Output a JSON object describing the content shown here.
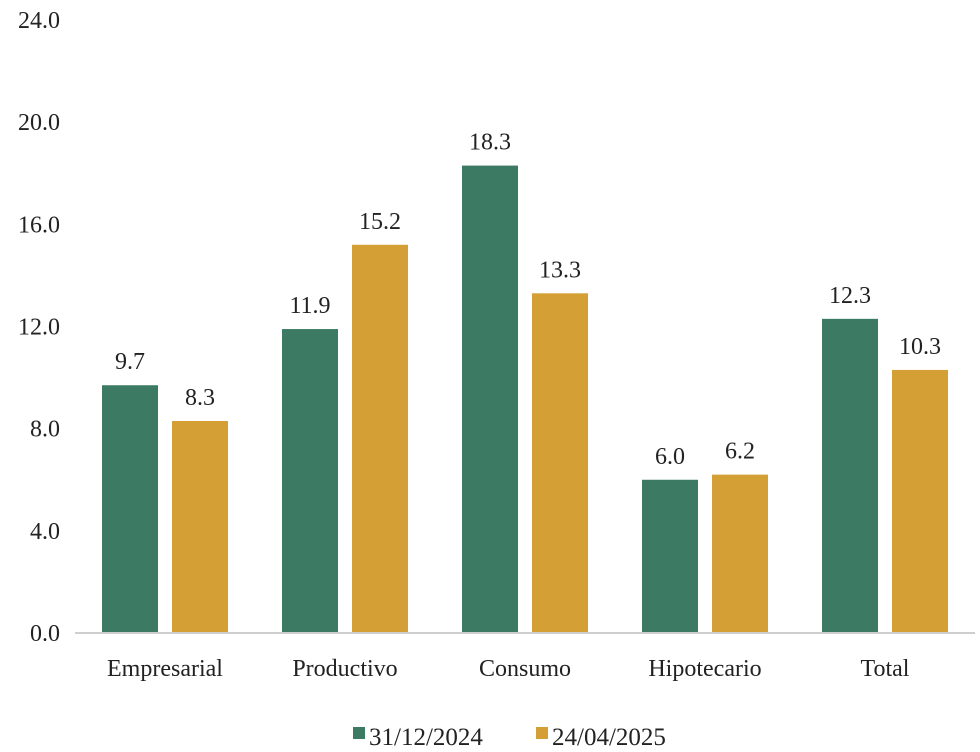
{
  "chart_data": {
    "type": "bar",
    "title": "",
    "xlabel": "",
    "ylabel": "",
    "categories": [
      "Empresarial",
      "Productivo",
      "Consumo",
      "Hipotecario",
      "Total"
    ],
    "series": [
      {
        "name": "31/12/2024",
        "values": [
          9.7,
          11.9,
          18.3,
          6.0,
          12.3
        ],
        "labels": [
          "9.7",
          "11.9",
          "18.3",
          "6.0",
          "12.3"
        ],
        "color": "#3d7a63"
      },
      {
        "name": "24/04/2025",
        "values": [
          8.3,
          15.2,
          13.3,
          6.2,
          10.3
        ],
        "labels": [
          "8.3",
          "15.2",
          "13.3",
          "6.2",
          "10.3"
        ],
        "color": "#d4a036"
      }
    ],
    "ylim": [
      0,
      24
    ],
    "yticks": [
      "0.0",
      "4.0",
      "8.0",
      "12.0",
      "16.0",
      "20.0",
      "24.0"
    ],
    "grid": false,
    "legend_position": "bottom"
  }
}
